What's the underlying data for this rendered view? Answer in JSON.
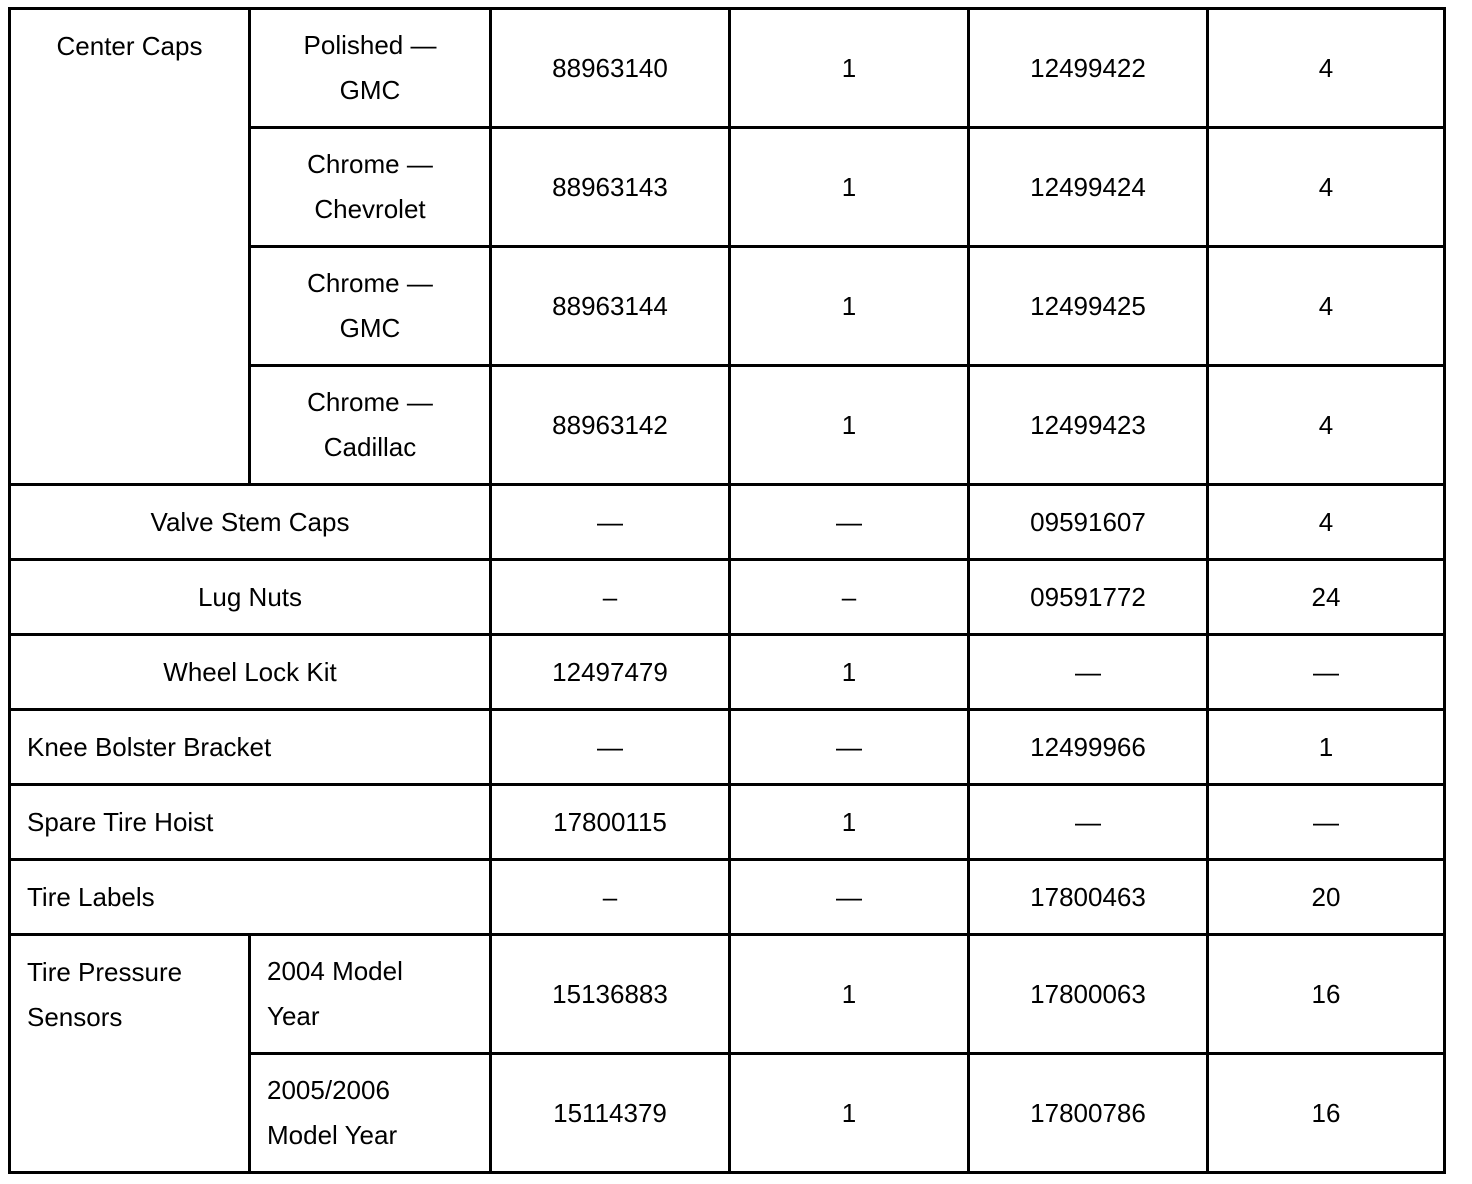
{
  "rows": [
    {
      "item": "Center Caps",
      "variant": "Polished —\nGMC",
      "c1": "88963140",
      "c2": "1",
      "c3": "12499422",
      "c4": "4"
    },
    {
      "variant": "Chrome —\nChevrolet",
      "c1": "88963143",
      "c2": "1",
      "c3": "12499424",
      "c4": "4"
    },
    {
      "variant": "Chrome —\nGMC",
      "c1": "88963144",
      "c2": "1",
      "c3": "12499425",
      "c4": "4"
    },
    {
      "variant": "Chrome —\nCadillac",
      "c1": "88963142",
      "c2": "1",
      "c3": "12499423",
      "c4": "4"
    },
    {
      "item": "Valve Stem Caps",
      "c1": "—",
      "c2": "—",
      "c3": "09591607",
      "c4": "4"
    },
    {
      "item": "Lug Nuts",
      "c1": "–",
      "c2": "–",
      "c3": "09591772",
      "c4": "24"
    },
    {
      "item": "Wheel Lock Kit",
      "c1": "12497479",
      "c2": "1",
      "c3": "—",
      "c4": "—"
    },
    {
      "item": "Knee Bolster Bracket",
      "c1": "—",
      "c2": "—",
      "c3": "12499966",
      "c4": "1"
    },
    {
      "item": "Spare Tire Hoist",
      "c1": "17800115",
      "c2": "1",
      "c3": "—",
      "c4": "—"
    },
    {
      "item": "Tire Labels",
      "c1": "–",
      "c2": "—",
      "c3": "17800463",
      "c4": "20"
    },
    {
      "item": "Tire Pressure\nSensors",
      "variant": "2004 Model\nYear",
      "c1": "15136883",
      "c2": "1",
      "c3": "17800063",
      "c4": "16"
    },
    {
      "variant": "2005/2006\nModel Year",
      "c1": "15114379",
      "c2": "1",
      "c3": "17800786",
      "c4": "16"
    }
  ]
}
